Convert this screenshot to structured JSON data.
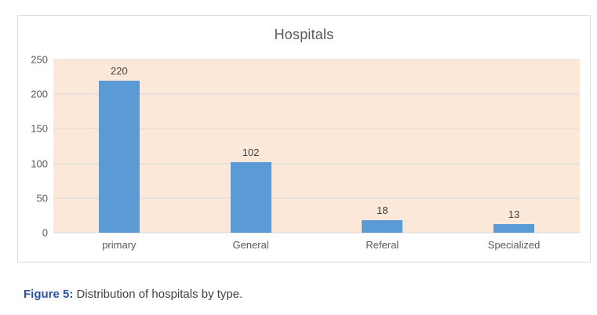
{
  "chart_data": {
    "type": "bar",
    "title": "Hospitals",
    "categories": [
      "primary",
      "General",
      "Referal",
      "Specialized"
    ],
    "values": [
      220,
      102,
      18,
      13
    ],
    "ylim": [
      0,
      250
    ],
    "y_ticks": [
      0,
      50,
      100,
      150,
      200,
      250
    ],
    "grid": true,
    "legend": "none",
    "bar_color": "#5b9bd5",
    "plot_bg": "#fce8d8",
    "gridline_color": "#d9d9d9"
  },
  "caption": {
    "label": "Figure 5:",
    "text": " Distribution of hospitals by type."
  }
}
